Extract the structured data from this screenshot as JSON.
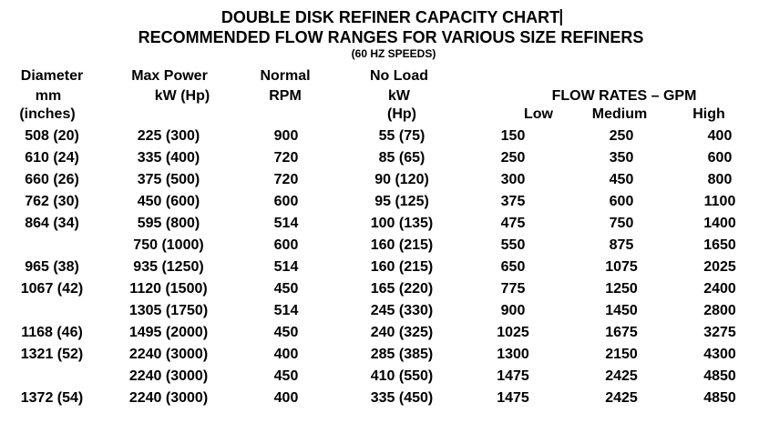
{
  "document": {
    "title_line1": "DOUBLE DISK REFINER CAPACITY CHART",
    "title_line2": "RECOMMENDED FLOW RANGES FOR VARIOUS SIZE REFINERS",
    "title_line3": "(60 HZ SPEEDS)",
    "text_color": "#000000",
    "background_color": "#ffffff",
    "cursor_visible": true
  },
  "table": {
    "columns": {
      "diameter": [
        "Diameter",
        "mm",
        "(inches)"
      ],
      "max_power": [
        "Max Power",
        "kW (Hp)"
      ],
      "normal_rpm": [
        "Normal",
        "RPM"
      ],
      "no_load": [
        "No Load",
        "kW",
        "(Hp)"
      ],
      "flow_rates_group": "FLOW RATES – GPM",
      "flow_low": "Low",
      "flow_medium": "Medium",
      "flow_high": "High"
    },
    "rows": [
      [
        "508 (20)",
        "225 (300)",
        "900",
        "55 (75)",
        "150",
        "250",
        "400"
      ],
      [
        "610 (24)",
        "335 (400)",
        "720",
        "85 (65)",
        "250",
        "350",
        "600"
      ],
      [
        "660 (26)",
        "375 (500)",
        "720",
        "90 (120)",
        "300",
        "450",
        "800"
      ],
      [
        "762 (30)",
        "450 (600)",
        "600",
        "95 (125)",
        "375",
        "600",
        "1100"
      ],
      [
        "864 (34)",
        "595 (800)",
        "514",
        "100 (135)",
        "475",
        "750",
        "1400"
      ],
      [
        "",
        "750 (1000)",
        "600",
        "160 (215)",
        "550",
        "875",
        "1650"
      ],
      [
        "965 (38)",
        "935 (1250)",
        "514",
        "160 (215)",
        "650",
        "1075",
        "2025"
      ],
      [
        "1067 (42)",
        "1120 (1500)",
        "450",
        "165 (220)",
        "775",
        "1250",
        "2400"
      ],
      [
        "",
        "1305 (1750)",
        "514",
        "245 (330)",
        "900",
        "1450",
        "2800"
      ],
      [
        "1168 (46)",
        "1495 (2000)",
        "450",
        "240 (325)",
        "1025",
        "1675",
        "3275"
      ],
      [
        "1321 (52)",
        "2240 (3000)",
        "400",
        "285 (385)",
        "1300",
        "2150",
        "4300"
      ],
      [
        "",
        "2240 (3000)",
        "450",
        "410 (550)",
        "1475",
        "2425",
        "4850"
      ],
      [
        "1372 (54)",
        "2240 (3000)",
        "400",
        "335 (450)",
        "1475",
        "2425",
        "4850"
      ]
    ]
  }
}
